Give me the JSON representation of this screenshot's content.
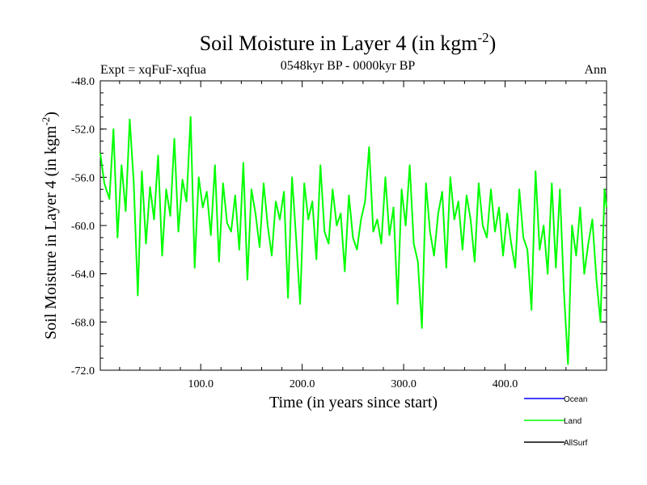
{
  "chart_data": {
    "type": "line",
    "title": "Soil Moisture in Layer 4 (in kgm",
    "title_superscript": "-2",
    "title_close": ")",
    "subtitle_left": "Expt = xqFuF-xqfua",
    "subtitle_center": "0548kyr BP - 0000kyr BP",
    "subtitle_right": "Ann",
    "xlabel": "Time (in years since start)",
    "ylabel": "Soil Moisture in Layer 4 (in kgm",
    "ylabel_superscript": "-2",
    "ylabel_close": ")",
    "xlim": [
      1,
      500
    ],
    "ylim": [
      -72.0,
      -48.0
    ],
    "x_ticks": [
      100,
      200,
      300,
      400
    ],
    "x_tick_labels": [
      "100.0",
      "200.0",
      "300.0",
      "400.0"
    ],
    "y_ticks": [
      -48.0,
      -52.0,
      -56.0,
      -60.0,
      -64.0,
      -68.0,
      -72.0
    ],
    "y_tick_labels": [
      "-48.0",
      "-52.0",
      "-56.0",
      "-60.0",
      "-64.0",
      "-68.0",
      "-72.0"
    ],
    "legend": {
      "placement": "bottom-right",
      "entries": [
        {
          "name": "Ocean",
          "color": "#0000ff"
        },
        {
          "name": "Land",
          "color": "#00ff00"
        },
        {
          "name": "AllSurf",
          "color": "#000000"
        }
      ]
    },
    "series": [
      {
        "name": "Land",
        "color": "#00ff00",
        "x": [
          1,
          5,
          10,
          14,
          18,
          22,
          26,
          30,
          34,
          38,
          42,
          46,
          50,
          54,
          58,
          62,
          66,
          70,
          74,
          78,
          82,
          86,
          90,
          94,
          98,
          102,
          106,
          110,
          114,
          118,
          122,
          126,
          130,
          134,
          138,
          142,
          146,
          150,
          154,
          158,
          162,
          166,
          170,
          174,
          178,
          182,
          186,
          190,
          194,
          198,
          202,
          206,
          210,
          214,
          218,
          222,
          226,
          230,
          234,
          238,
          242,
          246,
          250,
          254,
          258,
          262,
          266,
          270,
          274,
          278,
          282,
          286,
          290,
          294,
          298,
          302,
          306,
          310,
          314,
          318,
          322,
          326,
          330,
          334,
          338,
          342,
          346,
          350,
          354,
          358,
          362,
          366,
          370,
          374,
          378,
          382,
          386,
          390,
          394,
          398,
          402,
          406,
          410,
          414,
          418,
          422,
          426,
          430,
          434,
          438,
          442,
          446,
          450,
          454,
          458,
          462,
          466,
          470,
          474,
          478,
          482,
          486,
          490,
          494,
          498,
          500
        ],
        "y": [
          -54.0,
          -56.5,
          -57.8,
          -52.0,
          -61.0,
          -55.0,
          -58.8,
          -51.2,
          -56.5,
          -65.8,
          -55.5,
          -61.5,
          -56.8,
          -59.5,
          -54.2,
          -62.5,
          -57.0,
          -59.2,
          -52.8,
          -60.5,
          -56.2,
          -58.0,
          -51.0,
          -63.5,
          -56.0,
          -58.5,
          -57.2,
          -60.8,
          -55.0,
          -63.0,
          -56.5,
          -59.8,
          -60.5,
          -57.5,
          -62.0,
          -54.8,
          -64.5,
          -57.0,
          -59.0,
          -61.8,
          -56.5,
          -60.0,
          -62.5,
          -58.0,
          -59.5,
          -57.2,
          -66.0,
          -56.0,
          -61.0,
          -66.5,
          -56.5,
          -59.5,
          -58.0,
          -62.8,
          -55.0,
          -60.5,
          -61.5,
          -57.0,
          -60.0,
          -59.0,
          -63.8,
          -57.5,
          -61.0,
          -62.0,
          -59.5,
          -58.0,
          -53.5,
          -60.5,
          -59.5,
          -61.5,
          -56.0,
          -60.8,
          -58.5,
          -66.5,
          -57.0,
          -60.0,
          -55.0,
          -61.5,
          -63.0,
          -68.5,
          -56.5,
          -60.5,
          -62.5,
          -59.0,
          -57.2,
          -63.5,
          -56.0,
          -59.5,
          -58.0,
          -62.0,
          -57.5,
          -59.5,
          -63.0,
          -56.5,
          -60.0,
          -61.0,
          -57.0,
          -60.5,
          -58.5,
          -62.5,
          -59.0,
          -61.5,
          -63.5,
          -57.0,
          -61.0,
          -62.0,
          -67.0,
          -55.5,
          -62.0,
          -60.0,
          -64.0,
          -56.5,
          -63.5,
          -57.0,
          -65.5,
          -71.5,
          -60.0,
          -62.5,
          -58.5,
          -64.0,
          -61.5,
          -59.5,
          -64.5,
          -68.0,
          -57.0,
          -58.5
        ]
      }
    ]
  }
}
